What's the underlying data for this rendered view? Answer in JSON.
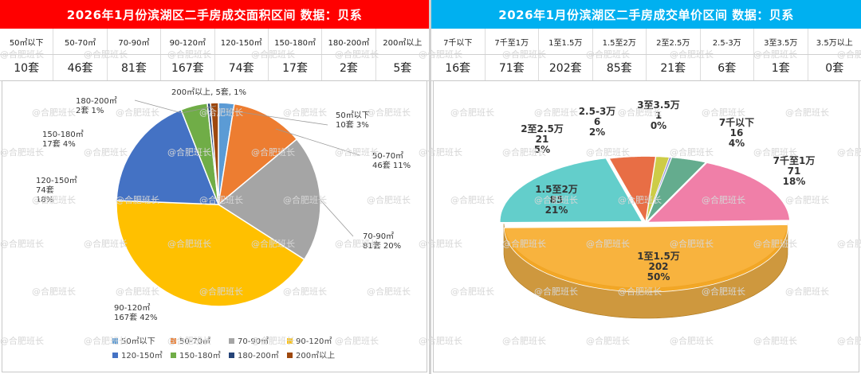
{
  "left": {
    "title": "2026年1月份滨湖区二手房成交面积区间 数据：贝系",
    "title_color": "#ff0000",
    "headers": [
      "50㎡以下",
      "50-70㎡",
      "70-90㎡",
      "90-120㎡",
      "120-150㎡",
      "150-180㎡",
      "180-200㎡",
      "200㎡以上"
    ],
    "values": [
      "10套",
      "46套",
      "81套",
      "167套",
      "74套",
      "17套",
      "2套",
      "5套"
    ]
  },
  "right": {
    "title": "2026年1月份滨湖区二手房成交单价区间 数据：贝系",
    "title_color": "#00b0f0",
    "headers": [
      "7千以下",
      "7千至1万",
      "1至1.5万",
      "1.5至2万",
      "2至2.5万",
      "2.5-3万",
      "3至3.5万",
      "3.5万以上"
    ],
    "values": [
      "16套",
      "71套",
      "202套",
      "85套",
      "21套",
      "6套",
      "1套",
      "0套"
    ]
  },
  "watermark": "@合肥班长",
  "chart_data": [
    {
      "type": "pie",
      "categories": [
        "50㎡以下",
        "50-70㎡",
        "70-90㎡",
        "90-120㎡",
        "120-150㎡",
        "150-180㎡",
        "180-200㎡",
        "200㎡以上"
      ],
      "values": [
        10,
        46,
        81,
        167,
        74,
        17,
        2,
        5
      ],
      "data_labels": [
        [
          "50㎡以下",
          "10套 3%"
        ],
        [
          "50-70㎡",
          "46套 11%"
        ],
        [
          "70-90㎡",
          "81套 20%"
        ],
        [
          "90-120㎡",
          "167套 42%"
        ],
        [
          "120-150㎡",
          "74套",
          "18%"
        ],
        [
          "150-180㎡",
          "17套  4%"
        ],
        [
          "180-200㎡",
          "2套   1%"
        ],
        [
          "200㎡以上, 5套, 1%"
        ]
      ],
      "colors": [
        "#5b9bd5",
        "#ed7d31",
        "#a5a5a5",
        "#ffc000",
        "#4472c4",
        "#70ad47",
        "#264478",
        "#9e480e"
      ],
      "legend": [
        "50㎡以下",
        "50-70㎡",
        "70-90㎡",
        "90-120㎡",
        "120-150㎡",
        "150-180㎡",
        "180-200㎡",
        "200㎡以上"
      ],
      "legend_position": "bottom"
    },
    {
      "type": "pie",
      "style": "3d",
      "categories": [
        "7千以下",
        "7千至1万",
        "1至1.5万",
        "1.5至2万",
        "2至2.5万",
        "2.5-3万",
        "3至3.5万",
        "3.5万以上"
      ],
      "values": [
        16,
        71,
        202,
        85,
        21,
        6,
        1,
        0
      ],
      "data_labels": [
        [
          "7千以下",
          "16",
          "4%"
        ],
        [
          "7千至1万",
          "71",
          "18%"
        ],
        [
          "1至1.5万",
          "202",
          "50%"
        ],
        [
          "1.5至2万",
          "85",
          "21%"
        ],
        [
          "2至2.5万",
          "21",
          "5%"
        ],
        [
          "2.5-3万",
          "6",
          "2%"
        ],
        [
          "3至3.5万",
          "1",
          "0%"
        ],
        []
      ],
      "colors": [
        "#4ea07e",
        "#ee6d9c",
        "#f7a823",
        "#4dc7c4",
        "#e55a2b",
        "#c6c52e",
        "#8a8ad6",
        "#999999"
      ],
      "legend": []
    }
  ]
}
